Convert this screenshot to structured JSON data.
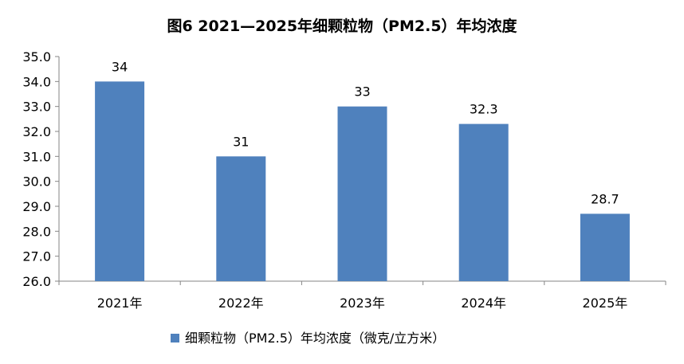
{
  "chart_data": {
    "type": "bar",
    "title": "图6   2021—2025年细颗粒物（PM2.5）年均浓度",
    "categories": [
      "2021年",
      "2022年",
      "2023年",
      "2024年",
      "2025年"
    ],
    "series": [
      {
        "name": "细颗粒物（PM2.5）年均浓度（微克/立方米）",
        "values": [
          34,
          31,
          33,
          32.3,
          28.7
        ],
        "color": "#4F81BD"
      }
    ],
    "data_labels": [
      "34",
      "31",
      "33",
      "32.3",
      "28.7"
    ],
    "ylim": [
      26,
      35
    ],
    "yticks": [
      "26.0",
      "27.0",
      "28.0",
      "29.0",
      "30.0",
      "31.0",
      "32.0",
      "33.0",
      "34.0",
      "35.0"
    ],
    "xlabel": "",
    "ylabel": "",
    "grid": false,
    "legend": "bottom"
  }
}
